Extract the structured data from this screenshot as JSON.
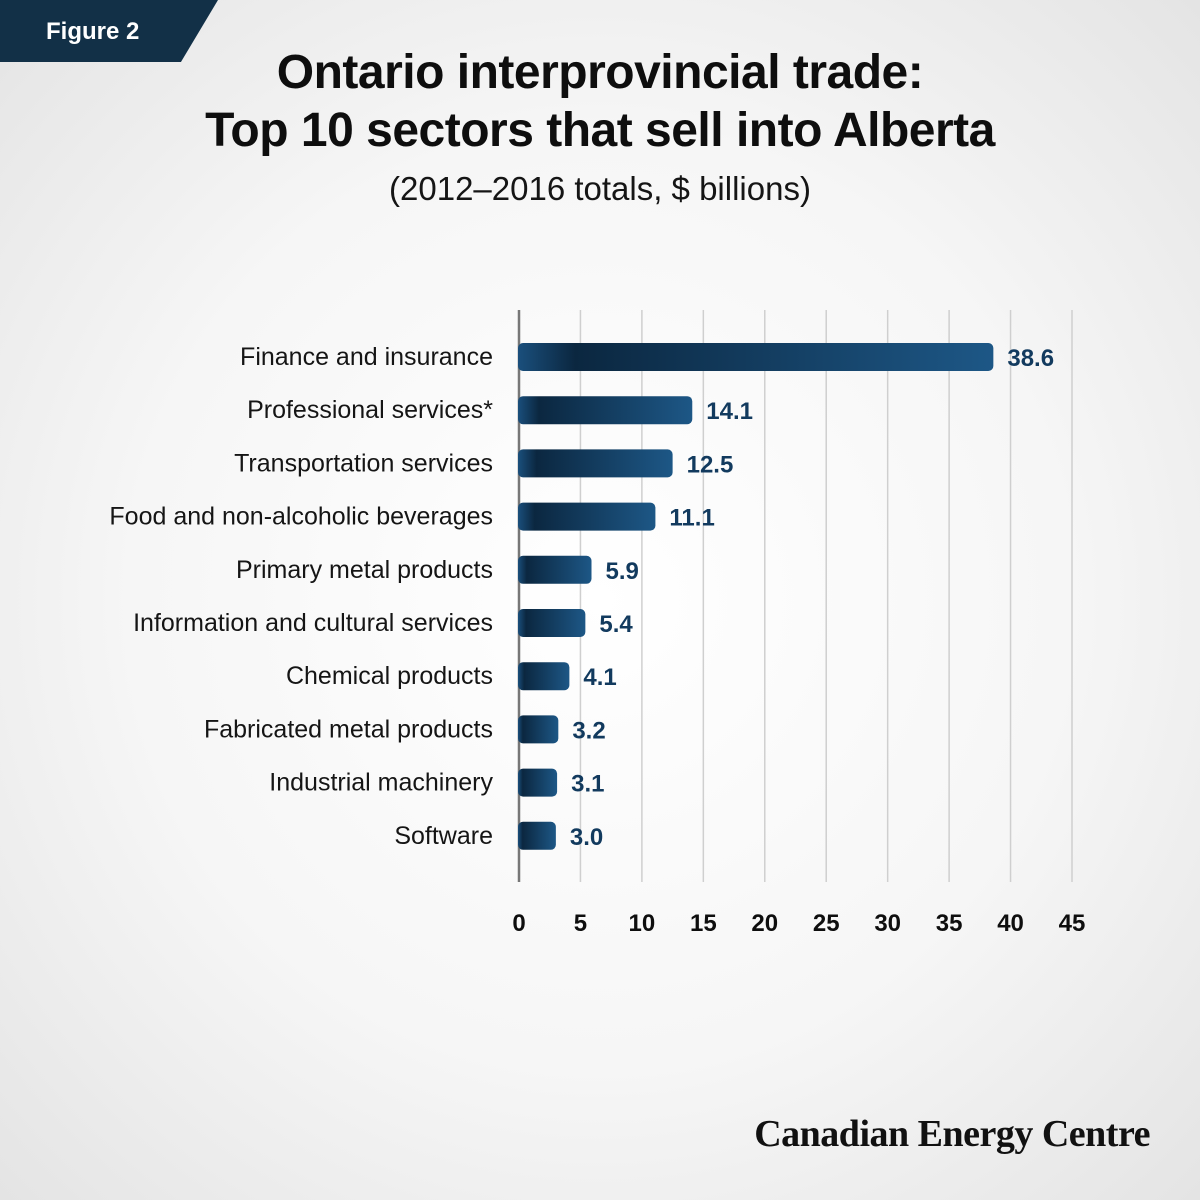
{
  "figure_tag": "Figure 2",
  "title_line1": "Ontario interprovincial trade:",
  "title_line2": "Top 10 sectors that sell into Alberta",
  "subtitle": "(2012–2016 totals, $ billions)",
  "footer": "Canadian Energy Centre",
  "colors": {
    "bar_dark": "#0b2740",
    "bar_light": "#1d5786",
    "accent": "#123047",
    "value_text": "#123a5e"
  },
  "chart_data": {
    "type": "bar",
    "orientation": "horizontal",
    "categories": [
      "Finance and insurance",
      "Professional services*",
      "Transportation services",
      "Food and non-alcoholic beverages",
      "Primary metal products",
      "Information and cultural services",
      "Chemical products",
      "Fabricated metal products",
      "Industrial machinery",
      "Software"
    ],
    "values": [
      38.6,
      14.1,
      12.5,
      11.1,
      5.9,
      5.4,
      4.1,
      3.2,
      3.1,
      3.0
    ],
    "value_labels": [
      "38.6",
      "14.1",
      "12.5",
      "11.1",
      "5.9",
      "5.4",
      "4.1",
      "3.2",
      "3.1",
      "3.0"
    ],
    "xlim": [
      0,
      45
    ],
    "xticks": [
      0,
      5,
      10,
      15,
      20,
      25,
      30,
      35,
      40,
      45
    ],
    "grid": true,
    "legend": "none",
    "title": "Ontario interprovincial trade: Top 10 sectors that sell into Alberta",
    "subtitle": "(2012–2016 totals, $ billions)"
  }
}
